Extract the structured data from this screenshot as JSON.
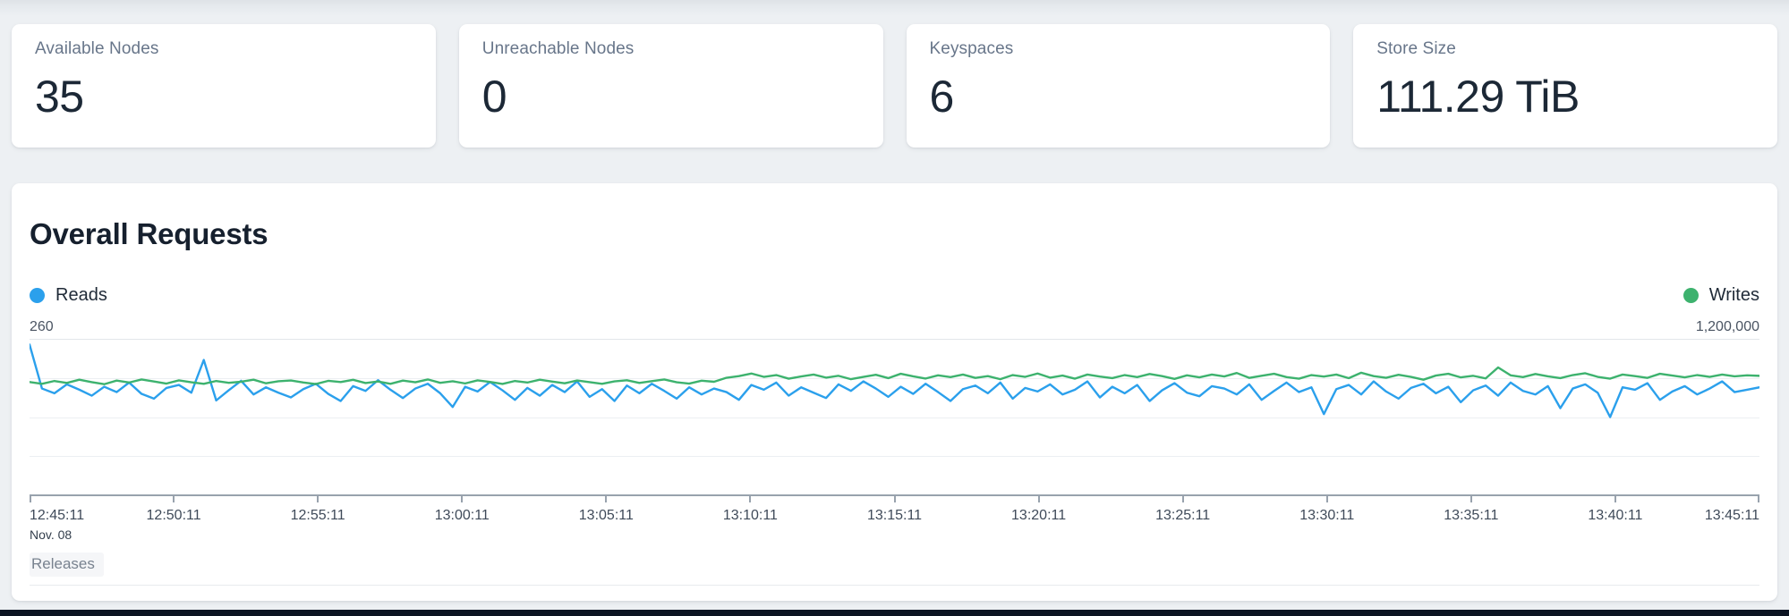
{
  "stats": [
    {
      "label": "Available Nodes",
      "value": "35"
    },
    {
      "label": "Unreachable Nodes",
      "value": "0"
    },
    {
      "label": "Keyspaces",
      "value": "6"
    },
    {
      "label": "Store Size",
      "value": "111.29 TiB"
    }
  ],
  "chart": {
    "title": "Overall Requests",
    "legend": [
      {
        "label": "Reads",
        "color": "#2ba0ec"
      },
      {
        "label": "Writes",
        "color": "#3db26e"
      }
    ],
    "left_axis_max_label": "260",
    "right_axis_max_label": "1,200,000",
    "x_labels": [
      "12:45:11",
      "12:50:11",
      "12:55:11",
      "13:00:11",
      "13:05:11",
      "13:10:11",
      "13:15:11",
      "13:20:11",
      "13:25:11",
      "13:30:11",
      "13:35:11",
      "13:40:11",
      "13:45:11"
    ],
    "x_date_label": "Nov. 08",
    "releases_label": "Releases"
  },
  "chart_data": {
    "type": "line",
    "title": "Overall Requests",
    "grid": "horizontal",
    "legend_position": "top",
    "x_ticks": [
      "12:45:11",
      "12:50:11",
      "12:55:11",
      "13:00:11",
      "13:05:11",
      "13:10:11",
      "13:15:11",
      "13:20:11",
      "13:25:11",
      "13:30:11",
      "13:35:11",
      "13:40:11",
      "13:45:11"
    ],
    "x_date": "Nov. 08",
    "series": [
      {
        "name": "Reads",
        "color": "#2ba0ec",
        "axis": "left",
        "axis_max": 260,
        "values": [
          252,
          178,
          170,
          185,
          176,
          166,
          181,
          172,
          188,
          169,
          161,
          179,
          184,
          171,
          226,
          158,
          175,
          191,
          168,
          180,
          171,
          163,
          177,
          186,
          169,
          157,
          182,
          174,
          192,
          176,
          162,
          178,
          186,
          170,
          147,
          181,
          173,
          189,
          175,
          159,
          179,
          166,
          184,
          172,
          190,
          164,
          177,
          157,
          183,
          170,
          186,
          174,
          161,
          180,
          168,
          178,
          172,
          159,
          184,
          176,
          188,
          166,
          180,
          171,
          162,
          185,
          174,
          190,
          178,
          164,
          181,
          169,
          186,
          172,
          157,
          177,
          183,
          170,
          188,
          161,
          179,
          173,
          185,
          168,
          176,
          190,
          163,
          181,
          170,
          184,
          157,
          175,
          187,
          171,
          165,
          182,
          178,
          168,
          185,
          159,
          174,
          188,
          172,
          180,
          135,
          177,
          184,
          168,
          190,
          173,
          161,
          179,
          186,
          170,
          181,
          155,
          175,
          183,
          166,
          188,
          174,
          168,
          182,
          145,
          178,
          185,
          171,
          130,
          180,
          176,
          187,
          159,
          173,
          182,
          168,
          178,
          190,
          172,
          176,
          180
        ]
      },
      {
        "name": "Writes",
        "color": "#3db26e",
        "axis": "right",
        "axis_max": 1200000,
        "values": [
          872000,
          858000,
          880000,
          865000,
          890000,
          871000,
          855000,
          883000,
          868000,
          892000,
          876000,
          860000,
          885000,
          870000,
          858000,
          880000,
          866000,
          874000,
          890000,
          862000,
          878000,
          884000,
          868000,
          856000,
          881000,
          872000,
          889000,
          864000,
          876000,
          858000,
          883000,
          870000,
          892000,
          866000,
          878000,
          861000,
          885000,
          873000,
          857000,
          880000,
          868000,
          890000,
          875000,
          862000,
          884000,
          871000,
          858000,
          877000,
          886000,
          865000,
          879000,
          892000,
          870000,
          860000,
          882000,
          874000,
          905000,
          918000,
          938000,
          912000,
          926000,
          898000,
          915000,
          930000,
          906000,
          920000,
          894000,
          912000,
          928000,
          902000,
          936000,
          916000,
          899000,
          924000,
          910000,
          930000,
          904000,
          918000,
          894000,
          926000,
          912000,
          938000,
          906000,
          922000,
          898000,
          930000,
          914000,
          902000,
          926000,
          910000,
          934000,
          918000,
          896000,
          924000,
          908000,
          930000,
          915000,
          942000,
          904000,
          920000,
          936000,
          910000,
          898000,
          926000,
          914000,
          930000,
          902000,
          944000,
          918000,
          905000,
          928000,
          912000,
          890000,
          922000,
          936000,
          908000,
          920000,
          900000,
          985000,
          924000,
          910000,
          934000,
          916000,
          902000,
          926000,
          940000,
          912000,
          898000,
          930000,
          918000,
          904000,
          936000,
          922000,
          908000,
          926000,
          912000,
          930000,
          916000,
          924000,
          920000
        ]
      }
    ]
  }
}
